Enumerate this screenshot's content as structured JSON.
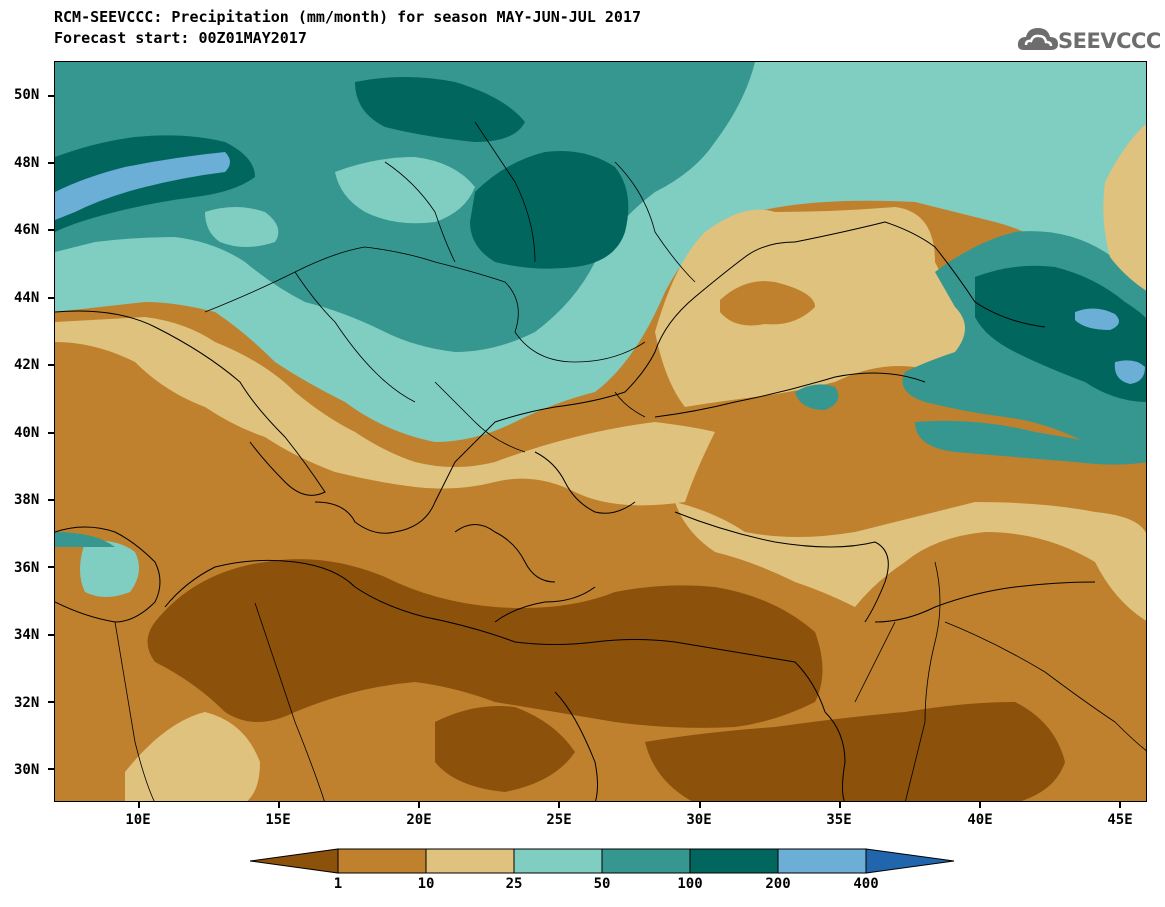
{
  "title": {
    "line1": "RCM-SEEVCCC: Precipitation (mm/month) for season MAY-JUN-JUL 2017",
    "line2": "Forecast start: 00Z01MAY2017"
  },
  "logo": {
    "text": "SEEVCCC",
    "icon": "cloud-icon"
  },
  "map": {
    "lon_range": [
      7,
      46
    ],
    "lat_range": [
      29,
      51
    ],
    "lat_labels": [
      "50N",
      "48N",
      "46N",
      "44N",
      "42N",
      "40N",
      "38N",
      "36N",
      "34N",
      "32N",
      "30N"
    ],
    "lon_labels": [
      "10E",
      "15E",
      "20E",
      "25E",
      "30E",
      "35E",
      "40E",
      "45E"
    ],
    "region": "Southeastern Europe, Mediterranean and Middle East",
    "color_classes": [
      {
        "range": "<1",
        "color": "#8c510a"
      },
      {
        "range": "1-10",
        "color": "#bf812d"
      },
      {
        "range": "10-25",
        "color": "#dfc27d"
      },
      {
        "range": "25-50",
        "color": "#80cdc1"
      },
      {
        "range": "50-100",
        "color": "#35978f"
      },
      {
        "range": "100-200",
        "color": "#01665e"
      },
      {
        "range": "200-400",
        "color": "#6baed6"
      },
      {
        "range": ">400",
        "color": "#2166ac"
      }
    ]
  },
  "colorbar": {
    "labels": [
      "1",
      "10",
      "25",
      "50",
      "100",
      "200",
      "400"
    ]
  }
}
